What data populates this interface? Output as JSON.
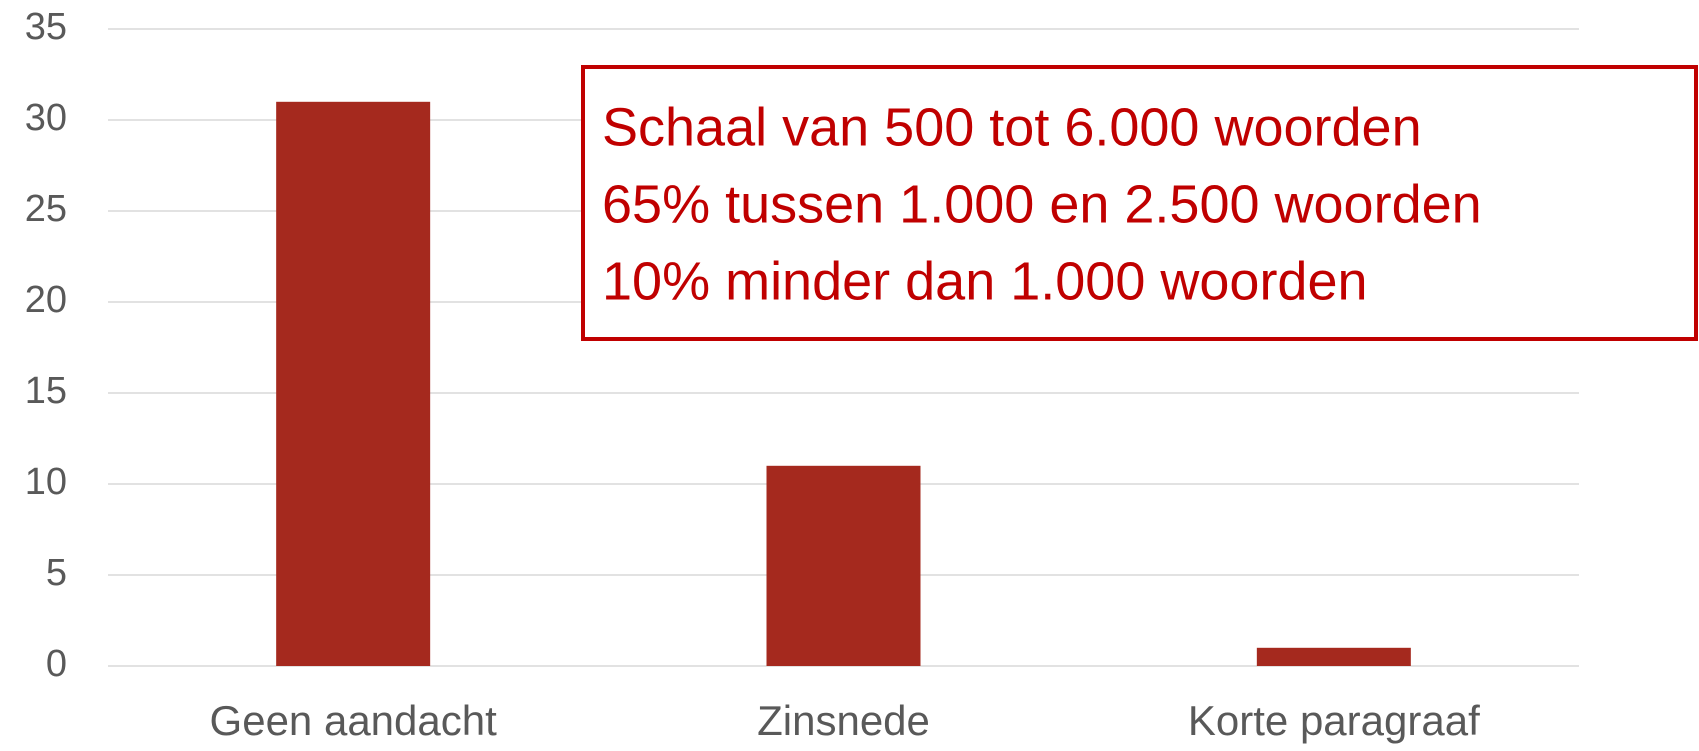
{
  "chart_data": {
    "type": "bar",
    "categories": [
      "Geen aandacht",
      "Zinsnede",
      "Korte paragraaf"
    ],
    "values": [
      31,
      11,
      1
    ],
    "color": "#a5291e",
    "ylim": [
      0,
      35
    ],
    "yticks": [
      0,
      5,
      10,
      15,
      20,
      25,
      30,
      35
    ],
    "grid": true,
    "annotations": [
      "Schaal van 500 tot 6.000 woorden",
      "65% tussen 1.000 en 2.500 woorden",
      "10% minder dan 1.000 woorden"
    ],
    "annotation_color": "#c00000"
  }
}
